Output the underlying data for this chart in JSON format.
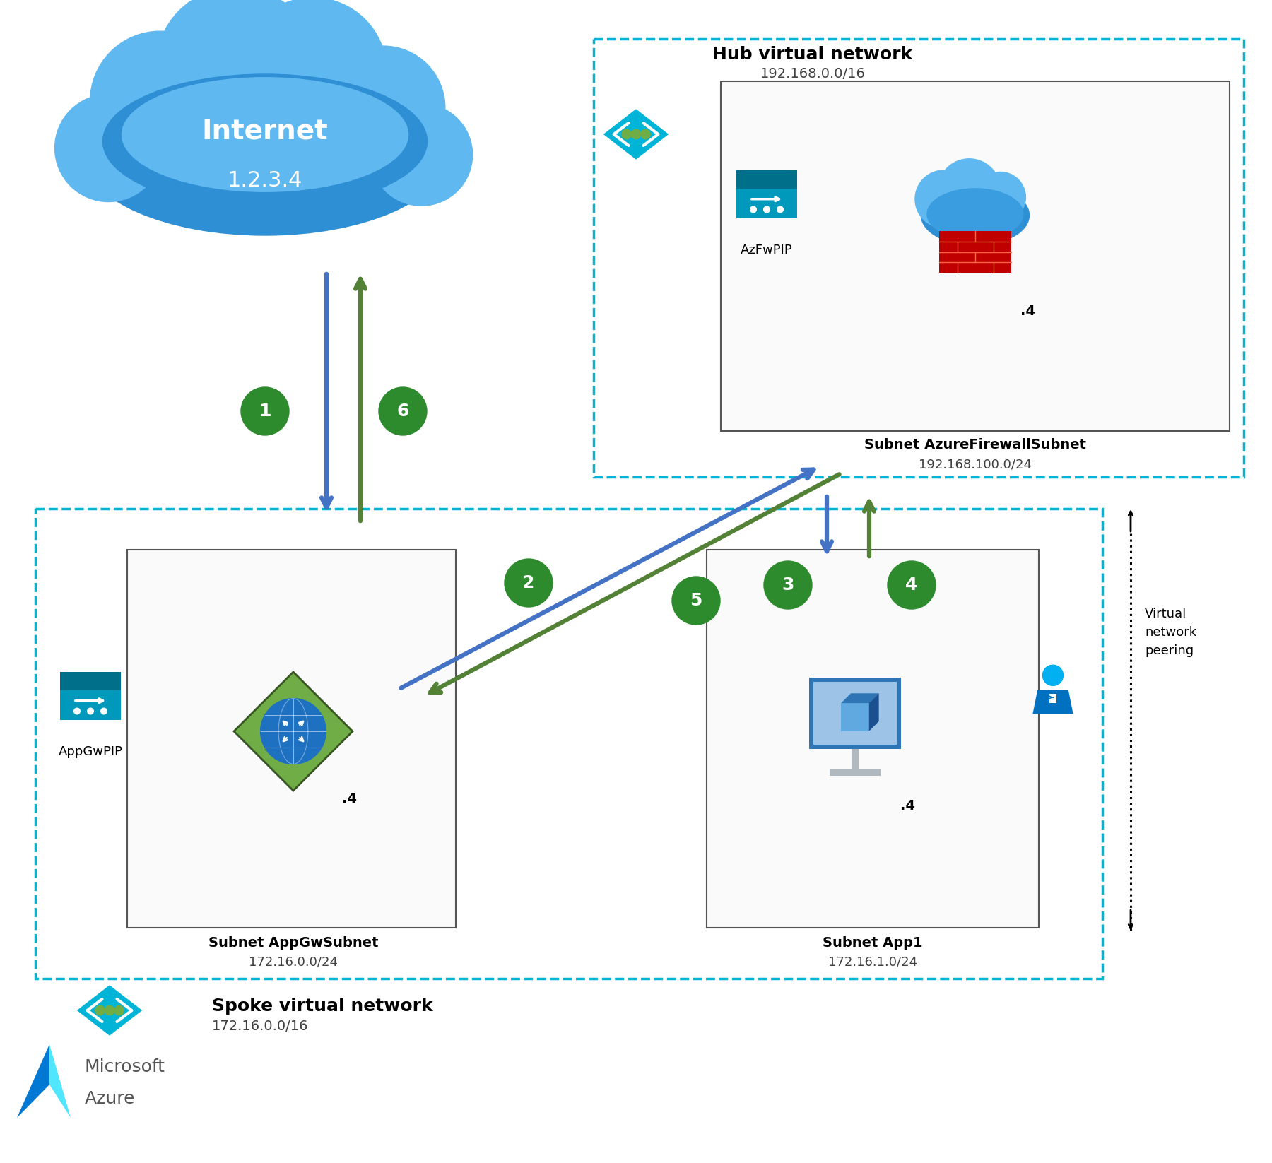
{
  "internet_label": "Internet",
  "internet_ip": "1.2.3.4",
  "hub_label": "Hub virtual network",
  "hub_cidr": "192.168.0.0/16",
  "hub_fw_subnet_label": "Subnet AzureFirewallSubnet",
  "hub_fw_subnet_cidr": "192.168.100.0/24",
  "azfw_pip_label": "AzFwPIP",
  "spoke_label": "Spoke virtual network",
  "spoke_cidr": "172.16.0.0/16",
  "appgw_subnet_label": "Subnet AppGwSubnet",
  "appgw_subnet_cidr": "172.16.0.0/24",
  "app1_subnet_label": "Subnet App1",
  "app1_subnet_cidr": "172.16.1.0/24",
  "appgw_pip_label": "AppGwPIP",
  "dot4": ".4",
  "peering_label": "Virtual\nnetwork\npeering",
  "ms_label1": "Microsoft",
  "ms_label2": "Azure",
  "arrow_blue": "#4472c4",
  "arrow_green": "#538135",
  "hub_border": "#00b4d8",
  "spoke_border": "#00b4d8",
  "bg_color": "#ffffff",
  "step_color": "#2d8a2d",
  "step_text": "#ffffff",
  "cloud_light": "#60b8f0",
  "cloud_dark": "#2e8fd4",
  "fw_red": "#c00000",
  "pip_blue": "#0099bc",
  "pip_dark": "#006f8a",
  "appgw_green": "#70ad47",
  "appgw_dark": "#375623",
  "vm_blue": "#4472c4",
  "vm_light": "#9dc3e6",
  "person_cyan": "#00b0f0",
  "azure_blue": "#0078d4",
  "azure_light": "#50e6ff",
  "label_bold": "#000000",
  "label_sub": "#404040"
}
